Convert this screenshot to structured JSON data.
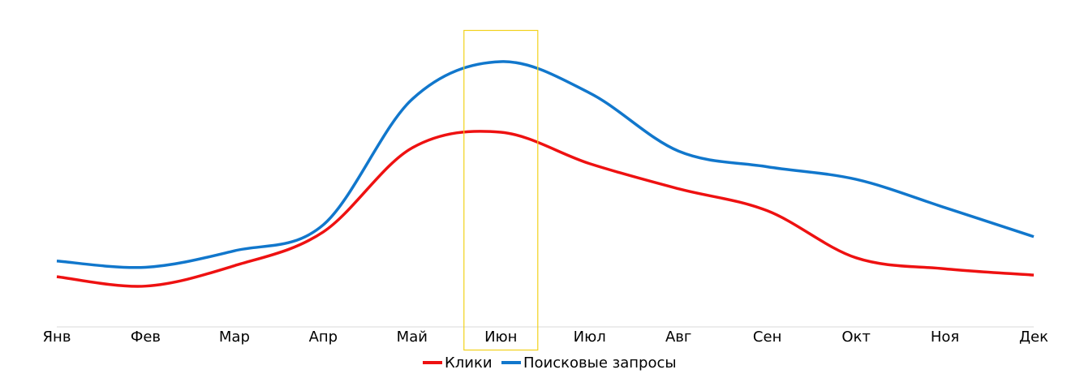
{
  "chart_data": {
    "type": "line",
    "smooth": true,
    "categories": [
      "Янв",
      "Фев",
      "Мар",
      "Апр",
      "Май",
      "Июн",
      "Июл",
      "Авг",
      "Сен",
      "Окт",
      "Ноя",
      "Дек"
    ],
    "series": [
      {
        "name": "Клики",
        "color": "#ee1111",
        "values": [
          64,
          52,
          78,
          121,
          228,
          248,
          208,
          176,
          148,
          88,
          74,
          66
        ]
      },
      {
        "name": "Поисковые запросы",
        "color": "#1177cc",
        "values": [
          84,
          76,
          97,
          130,
          290,
          338,
          298,
          224,
          204,
          188,
          152,
          115
        ]
      }
    ],
    "ylim": [
      0,
      370
    ],
    "highlight": {
      "category": "Июн",
      "color": "#f2d21c"
    },
    "grid": false,
    "legend_position": "bottom"
  }
}
